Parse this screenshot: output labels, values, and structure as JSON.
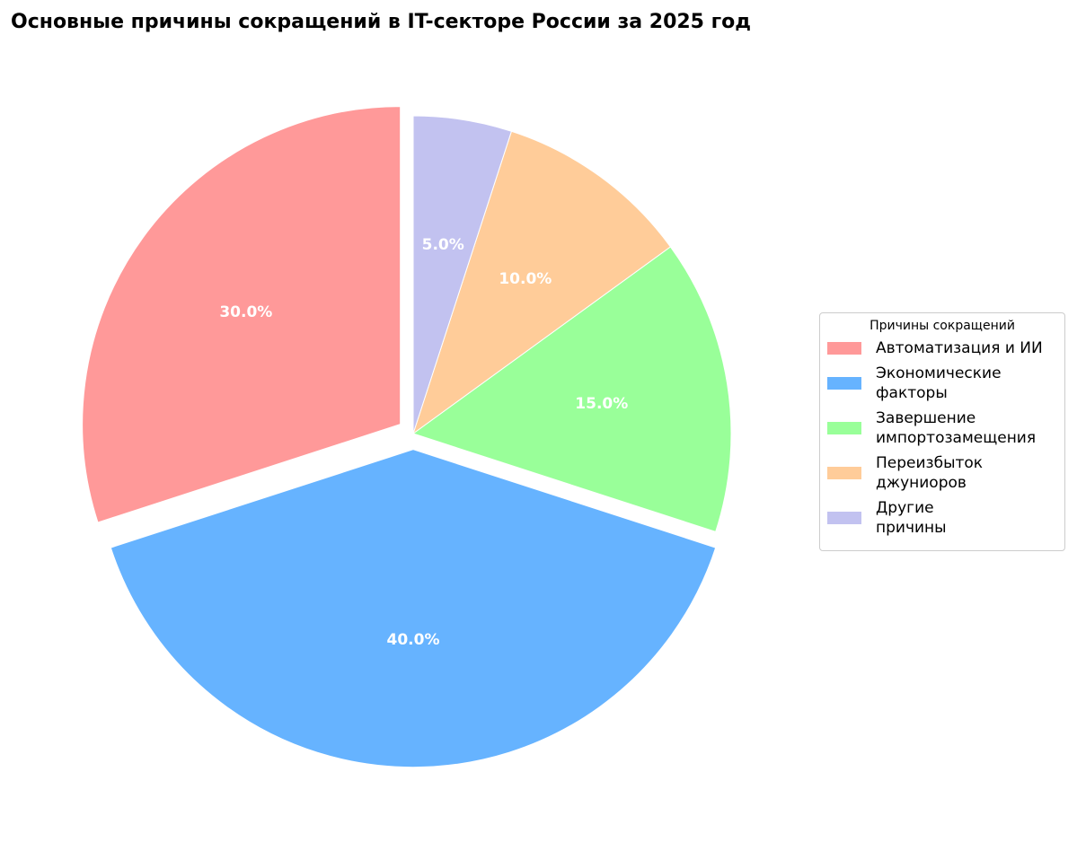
{
  "chart_data": {
    "type": "pie",
    "title": "Основные причины сокращений в IT-секторе России за 2025 год",
    "categories": [
      "Автоматизация и ИИ",
      "Экономические\nфакторы",
      "Завершение\nимпортозамещения",
      "Переизбыток\nджуниоров",
      "Другие\nпричины"
    ],
    "values": [
      30,
      40,
      15,
      10,
      5
    ],
    "value_labels": [
      "30.0%",
      "40.0%",
      "15.0%",
      "10.0%",
      "5.0%"
    ],
    "colors": [
      "#ff9999",
      "#66b3ff",
      "#99ff99",
      "#ffcc99",
      "#c2c2f0"
    ],
    "explode": [
      0.05,
      0.05,
      0,
      0,
      0
    ],
    "legend_title": "Причины сокращений",
    "legend": "right"
  }
}
